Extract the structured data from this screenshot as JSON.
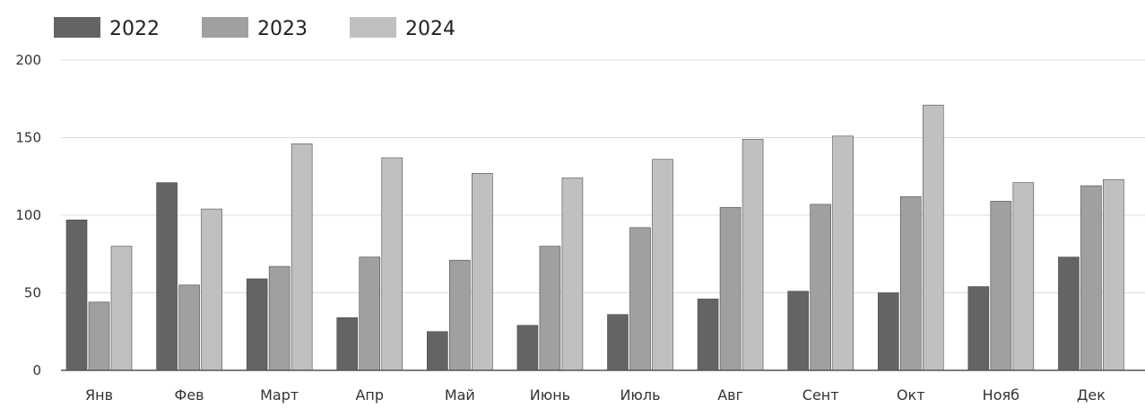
{
  "chart_data": {
    "type": "bar",
    "categories": [
      "Янв",
      "Фев",
      "Март",
      "Апр",
      "Май",
      "Июнь",
      "Июль",
      "Авг",
      "Сент",
      "Окт",
      "Нояб",
      "Дек"
    ],
    "series": [
      {
        "name": "2022",
        "color": "#646464",
        "values": [
          97,
          121,
          59,
          34,
          25,
          29,
          36,
          46,
          51,
          50,
          54,
          73
        ]
      },
      {
        "name": "2023",
        "color": "#a0a0a0",
        "values": [
          44,
          55,
          67,
          73,
          71,
          80,
          92,
          105,
          107,
          112,
          109,
          119
        ]
      },
      {
        "name": "2024",
        "color": "#c0c0c0",
        "values": [
          80,
          104,
          146,
          137,
          127,
          124,
          136,
          149,
          151,
          171,
          121,
          123
        ]
      }
    ],
    "yticks": [
      "0",
      "50",
      "100",
      "150",
      "200"
    ],
    "ylim": [
      0,
      200
    ],
    "title": "",
    "xlabel": "",
    "ylabel": "",
    "grid": true,
    "legend_position": "top-left",
    "colors": {
      "grid": "#dcdcdc",
      "axis": "#555555"
    }
  }
}
